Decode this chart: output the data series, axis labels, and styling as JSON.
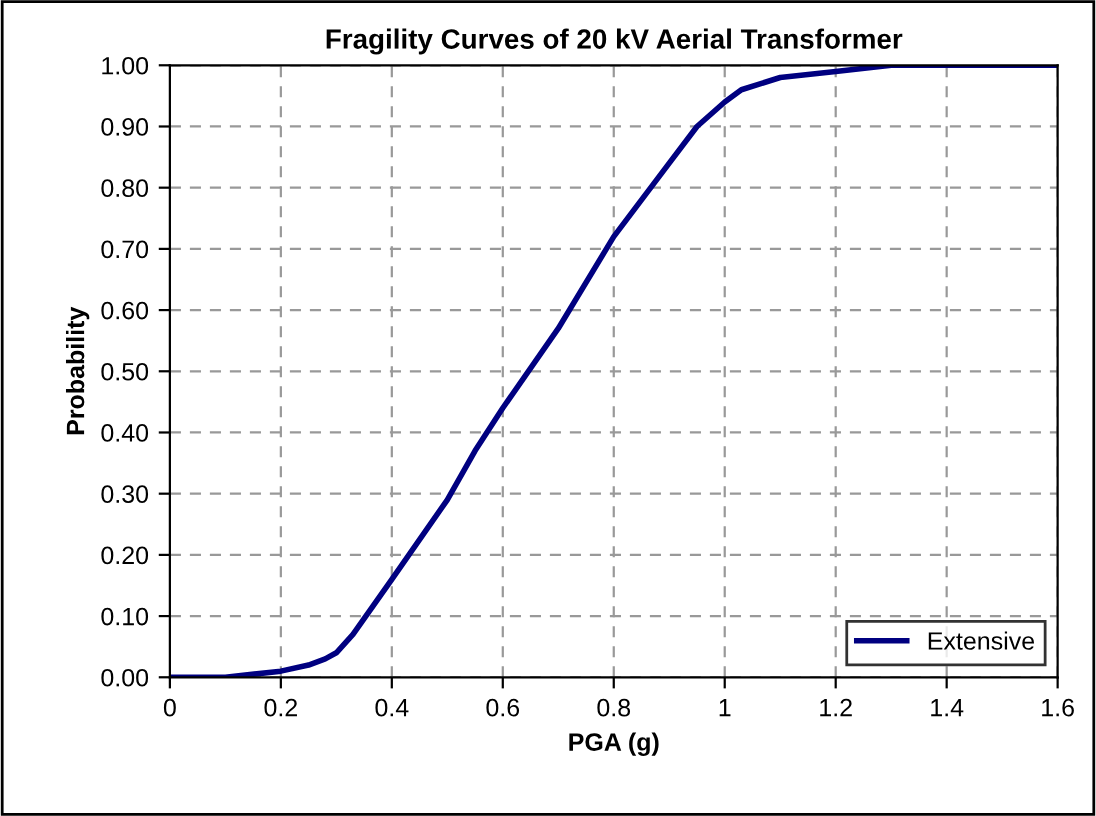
{
  "chart_data": {
    "type": "line",
    "title": "Fragility Curves of 20 kV Aerial Transformer",
    "xlabel": "PGA (g)",
    "ylabel": "Probability",
    "series": [
      {
        "name": "Extensive",
        "color": "#000080",
        "x": [
          0,
          0.1,
          0.2,
          0.25,
          0.28,
          0.3,
          0.33,
          0.4,
          0.5,
          0.55,
          0.6,
          0.7,
          0.8,
          0.9,
          0.95,
          1.0,
          1.03,
          1.1,
          1.2,
          1.3,
          1.4,
          1.5,
          1.6
        ],
        "values": [
          0,
          0,
          0.01,
          0.02,
          0.03,
          0.04,
          0.07,
          0.16,
          0.29,
          0.37,
          0.44,
          0.57,
          0.72,
          0.84,
          0.9,
          0.94,
          0.96,
          0.98,
          0.99,
          1.0,
          1.0,
          1.0,
          1.0
        ]
      }
    ],
    "xlim": [
      0,
      1.6
    ],
    "xticks": [
      0,
      0.2,
      0.4,
      0.6,
      0.8,
      1,
      1.2,
      1.4,
      1.6
    ],
    "ylim": [
      0,
      1
    ],
    "yticks": [
      {
        "value": 0,
        "label": "0.00"
      },
      {
        "value": 0.1,
        "label": "0.10"
      },
      {
        "value": 0.2,
        "label": "0.20"
      },
      {
        "value": 0.3,
        "label": "0.30"
      },
      {
        "value": 0.4,
        "label": "0.40"
      },
      {
        "value": 0.5,
        "label": "0.50"
      },
      {
        "value": 0.6,
        "label": "0.60"
      },
      {
        "value": 0.7,
        "label": "0.70"
      },
      {
        "value": 0.8,
        "label": "0.80"
      },
      {
        "value": 0.9,
        "label": "0.90"
      },
      {
        "value": 1,
        "label": "1.00"
      }
    ],
    "grid": true,
    "legend": "lower right",
    "marker": "none",
    "line_style": "solid"
  }
}
